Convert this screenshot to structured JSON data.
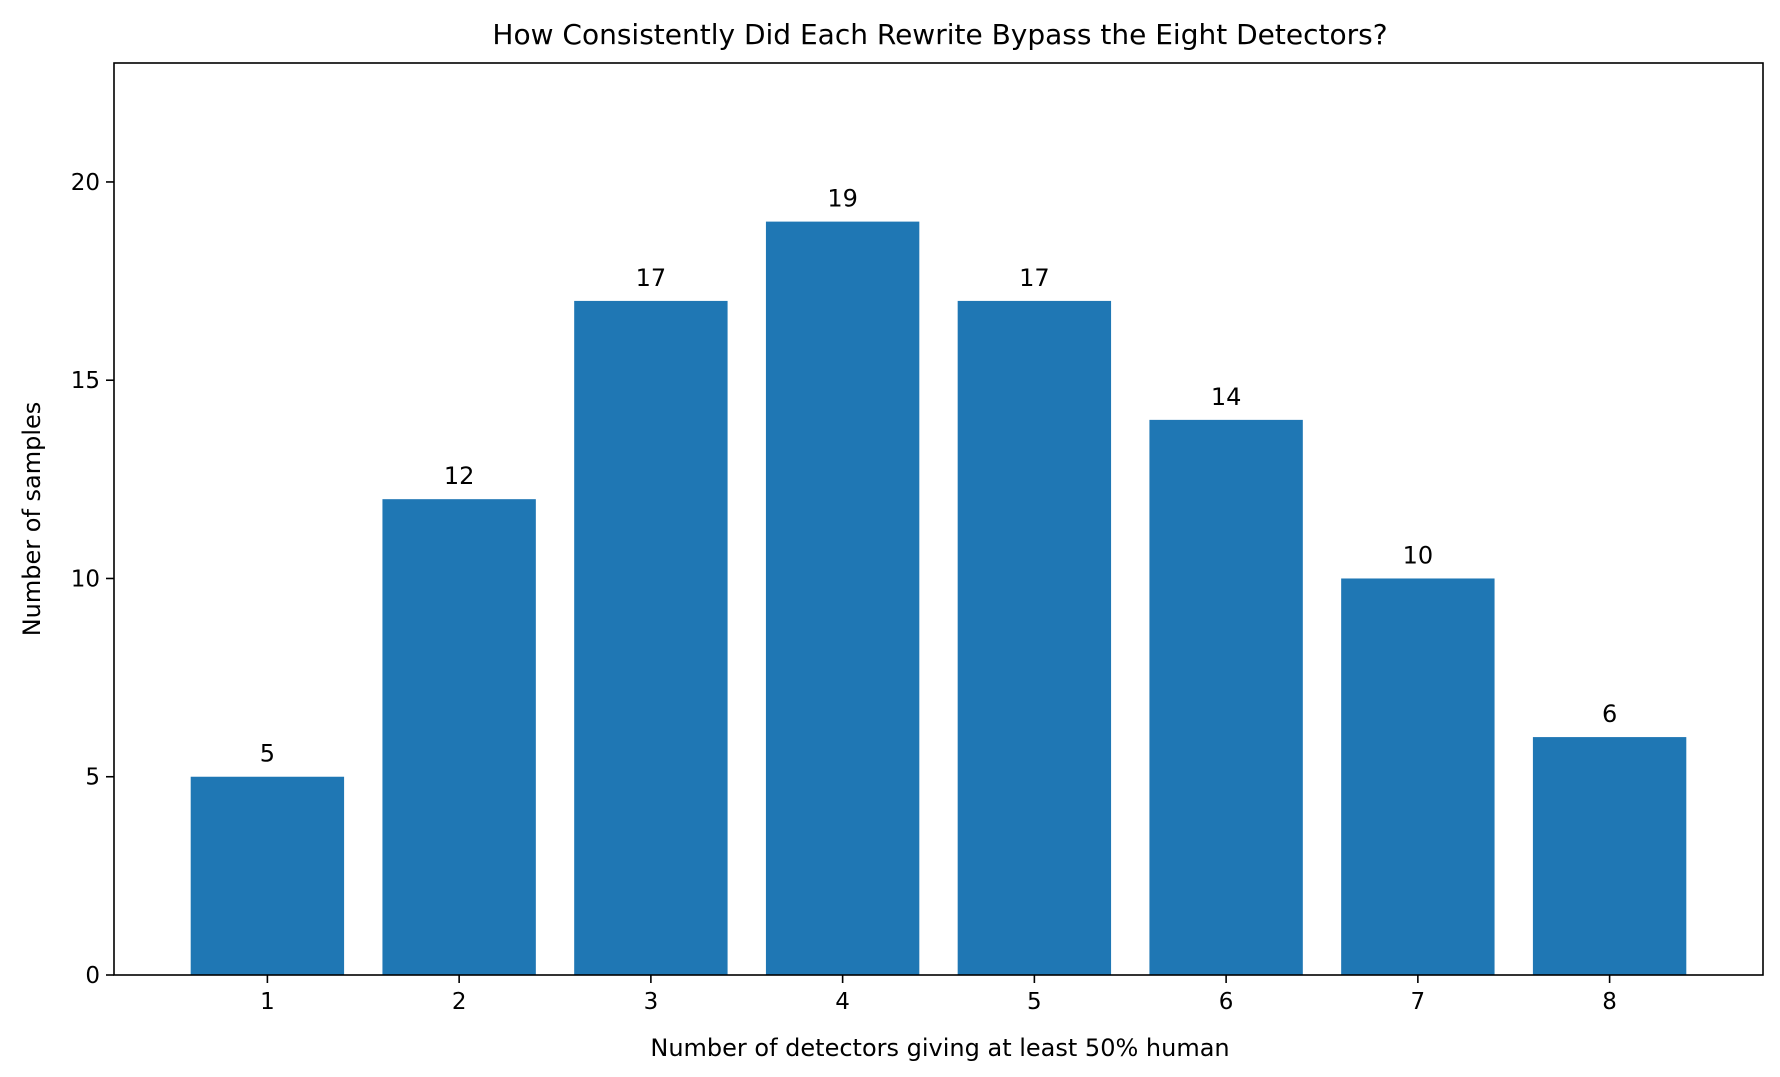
{
  "chart_data": {
    "type": "bar",
    "title": "How Consistently Did Each Rewrite Bypass the Eight Detectors?",
    "xlabel": "Number of detectors giving at least 50% human",
    "ylabel": "Number of samples",
    "categories": [
      "1",
      "2",
      "3",
      "4",
      "5",
      "6",
      "7",
      "8"
    ],
    "values": [
      5,
      12,
      17,
      19,
      17,
      14,
      10,
      6
    ],
    "data_labels": [
      "5",
      "12",
      "17",
      "19",
      "17",
      "14",
      "10",
      "6"
    ],
    "yticks": [
      0,
      5,
      10,
      15,
      20
    ],
    "ytick_labels": [
      "0",
      "5",
      "10",
      "15",
      "20"
    ],
    "ylim": [
      0,
      23
    ],
    "xlim": [
      0.2,
      8.8
    ],
    "bar_color": "#1f77b4",
    "grid": false,
    "legend": false
  }
}
